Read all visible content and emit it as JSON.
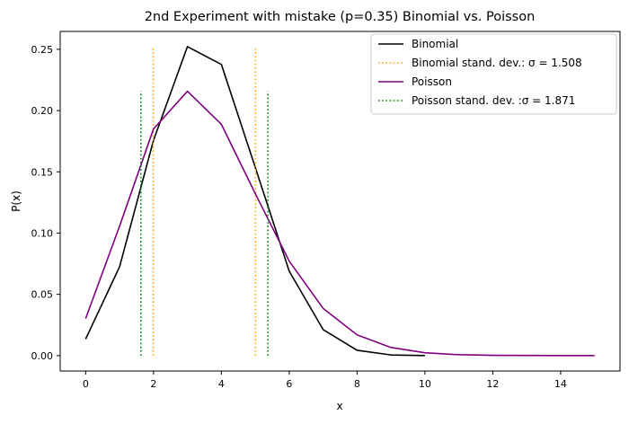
{
  "chart_data": {
    "type": "line",
    "title": "2nd Experiment with mistake (p=0.35) Binomial vs. Poisson",
    "xlabel": "x",
    "ylabel": "P(x)",
    "xlim": [
      -0.75,
      15.75
    ],
    "ylim": [
      -0.0126,
      0.2646
    ],
    "xticks": [
      0,
      2,
      4,
      6,
      8,
      10,
      12,
      14
    ],
    "xtick_labels": [
      "0",
      "2",
      "4",
      "6",
      "8",
      "10",
      "12",
      "14"
    ],
    "yticks": [
      0.0,
      0.05,
      0.1,
      0.15,
      0.2,
      0.25
    ],
    "ytick_labels": [
      "0.00",
      "0.05",
      "0.10",
      "0.15",
      "0.20",
      "0.25"
    ],
    "grid": false,
    "legend_position": "top-right",
    "series": [
      {
        "name": "Binomial",
        "kind": "line",
        "style": "solid",
        "color": "#000000",
        "x": [
          0,
          1,
          2,
          3,
          4,
          5,
          6,
          7,
          8,
          9,
          10
        ],
        "y": [
          0.0135,
          0.0725,
          0.1757,
          0.2522,
          0.2377,
          0.1536,
          0.0689,
          0.0212,
          0.0043,
          0.0005,
          0.0
        ]
      },
      {
        "name": "Binomial stand. dev.: σ = 1.508",
        "kind": "vlines",
        "style": "dotted",
        "color": "#ffa500",
        "x": [
          1.992,
          5.008
        ],
        "y": [
          0,
          0.2522
        ]
      },
      {
        "name": "Poisson",
        "kind": "line",
        "style": "solid",
        "color": "#800080",
        "x": [
          0,
          1,
          2,
          3,
          4,
          5,
          6,
          7,
          8,
          9,
          10,
          11,
          12,
          13,
          14,
          15
        ],
        "y": [
          0.0302,
          0.1057,
          0.185,
          0.2158,
          0.1888,
          0.1322,
          0.0771,
          0.0385,
          0.0169,
          0.0066,
          0.0023,
          0.0007,
          0.0002,
          0.0001,
          0.0,
          0.0
        ]
      },
      {
        "name": "Poisson stand. dev. :σ = 1.871",
        "kind": "vlines",
        "style": "dotted",
        "color": "#008000",
        "x": [
          1.629,
          5.371
        ],
        "y": [
          0,
          0.2158
        ]
      }
    ]
  }
}
